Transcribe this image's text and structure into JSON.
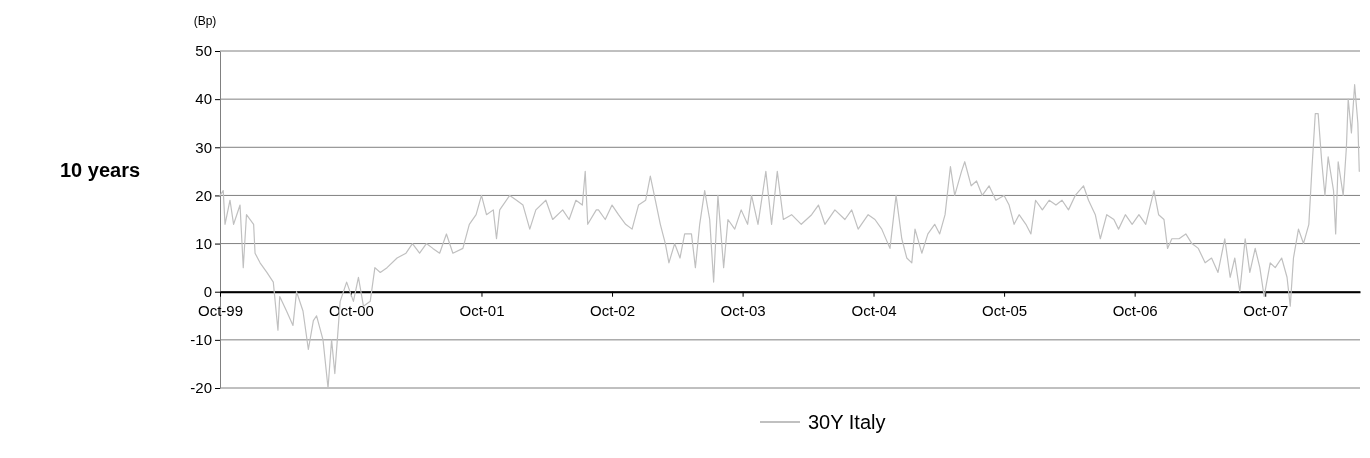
{
  "chart_data": {
    "type": "line",
    "title": "10 years",
    "ylabel": "(Bp)",
    "xlim": [
      "1999-10-01",
      "2008-06-22"
    ],
    "xticks": [
      {
        "value": "1999-10-01",
        "label": "Oct-99"
      },
      {
        "value": "2000-10-01",
        "label": "Oct-00"
      },
      {
        "value": "2001-10-01",
        "label": "Oct-01"
      },
      {
        "value": "2002-10-01",
        "label": "Oct-02"
      },
      {
        "value": "2003-10-01",
        "label": "Oct-03"
      },
      {
        "value": "2004-10-01",
        "label": "Oct-04"
      },
      {
        "value": "2005-10-01",
        "label": "Oct-05"
      },
      {
        "value": "2006-10-01",
        "label": "Oct-06"
      },
      {
        "value": "2007-10-01",
        "label": "Oct-07"
      }
    ],
    "ylim": [
      -20,
      50
    ],
    "yticks": [
      -20,
      -10,
      0,
      10,
      20,
      30,
      40,
      50
    ],
    "grid": "y",
    "legend": "bottom",
    "line_style": "solid",
    "marker": "none",
    "x": [
      "1999-10-01",
      "1999-10-10",
      "1999-10-15",
      "1999-10-29",
      "1999-11-08",
      "1999-11-26",
      "1999-12-05",
      "1999-12-14",
      "2000-01-03",
      "2000-01-07",
      "2000-01-21",
      "2000-02-09",
      "2000-02-27",
      "2000-03-11",
      "2000-03-16",
      "2000-04-04",
      "2000-04-22",
      "2000-05-02",
      "2000-05-20",
      "2000-06-04",
      "2000-06-18",
      "2000-06-27",
      "2000-07-15",
      "2000-07-29",
      "2000-08-08",
      "2000-08-17",
      "2000-09-01",
      "2000-09-19",
      "2000-10-08",
      "2000-10-22",
      "2000-11-05",
      "2000-11-24",
      "2000-12-07",
      "2000-12-22",
      "2001-01-10",
      "2001-02-07",
      "2001-03-04",
      "2001-03-22",
      "2001-04-11",
      "2001-04-30",
      "2001-05-18",
      "2001-06-06",
      "2001-06-25",
      "2001-07-13",
      "2001-08-10",
      "2001-08-28",
      "2001-09-16",
      "2001-10-01",
      "2001-10-15",
      "2001-11-03",
      "2001-11-12",
      "2001-11-21",
      "2001-12-19",
      "2002-01-07",
      "2002-01-25",
      "2002-02-13",
      "2002-03-02",
      "2002-03-30",
      "2002-04-18",
      "2002-05-16",
      "2002-06-03",
      "2002-06-22",
      "2002-07-10",
      "2002-07-18",
      "2002-07-25",
      "2002-08-18",
      "2002-08-24",
      "2002-09-12",
      "2002-10-01",
      "2002-10-19",
      "2002-11-08",
      "2002-11-26",
      "2002-12-14",
      "2003-01-03",
      "2003-01-16",
      "2003-01-30",
      "2003-02-13",
      "2003-02-27",
      "2003-03-09",
      "2003-03-25",
      "2003-04-09",
      "2003-04-22",
      "2003-05-11",
      "2003-05-22",
      "2003-06-03",
      "2003-06-17",
      "2003-07-01",
      "2003-07-12",
      "2003-07-24",
      "2003-08-09",
      "2003-08-21",
      "2003-09-09",
      "2003-09-27",
      "2003-10-15",
      "2003-10-26",
      "2003-11-13",
      "2003-12-05",
      "2003-12-21",
      "2004-01-06",
      "2004-01-23",
      "2004-02-15",
      "2004-03-13",
      "2004-04-11",
      "2004-04-30",
      "2004-05-18",
      "2004-06-15",
      "2004-07-13",
      "2004-08-01",
      "2004-08-19",
      "2004-09-16",
      "2004-10-05",
      "2004-10-24",
      "2004-11-16",
      "2004-12-03",
      "2004-12-19",
      "2005-01-02",
      "2005-01-16",
      "2005-01-25",
      "2005-02-13",
      "2005-03-02",
      "2005-03-21",
      "2005-04-04",
      "2005-04-19",
      "2005-05-04",
      "2005-05-16",
      "2005-06-04",
      "2005-06-13",
      "2005-07-01",
      "2005-07-16",
      "2005-08-01",
      "2005-08-20",
      "2005-09-08",
      "2005-10-01",
      "2005-10-15",
      "2005-10-29",
      "2005-11-12",
      "2005-12-01",
      "2005-12-15",
      "2005-12-28",
      "2006-01-16",
      "2006-02-04",
      "2006-02-23",
      "2006-03-12",
      "2006-03-30",
      "2006-04-18",
      "2006-05-11",
      "2006-05-25",
      "2006-06-13",
      "2006-06-27",
      "2006-07-15",
      "2006-08-04",
      "2006-08-17",
      "2006-09-05",
      "2006-09-24",
      "2006-10-13",
      "2006-11-01",
      "2006-11-24",
      "2006-12-07",
      "2006-12-22",
      "2007-01-01",
      "2007-01-13",
      "2007-02-02",
      "2007-02-21",
      "2007-03-10",
      "2007-03-28",
      "2007-04-16",
      "2007-05-04",
      "2007-05-22",
      "2007-06-10",
      "2007-06-25",
      "2007-07-08",
      "2007-07-22",
      "2007-08-06",
      "2007-08-19",
      "2007-09-03",
      "2007-09-16",
      "2007-09-28",
      "2007-10-15",
      "2007-10-29",
      "2007-11-16",
      "2007-12-01",
      "2007-12-10",
      "2007-12-19",
      "2008-01-02",
      "2008-01-16",
      "2008-01-31",
      "2008-02-09",
      "2008-02-18",
      "2008-02-26",
      "2008-03-07",
      "2008-03-16",
      "2008-03-25",
      "2008-04-09",
      "2008-04-15",
      "2008-04-22",
      "2008-05-06",
      "2008-05-15",
      "2008-05-20",
      "2008-05-29",
      "2008-06-07",
      "2008-06-16",
      "2008-06-20"
    ],
    "series": [
      {
        "name": "30Y Italy",
        "color": "#c0c0c0",
        "values": [
          20,
          21,
          14,
          19,
          14,
          18,
          5,
          16,
          14,
          8,
          6,
          4,
          2,
          -8,
          -1,
          -4,
          -7,
          0,
          -4,
          -12,
          -6,
          -5,
          -10,
          -20,
          -10,
          -17,
          -2,
          2,
          -2,
          3,
          -3,
          -2,
          5,
          4,
          5,
          7,
          8,
          10,
          8,
          10,
          9,
          8,
          12,
          8,
          9,
          14,
          16,
          20,
          16,
          17,
          11,
          17,
          20,
          19,
          18,
          13,
          17,
          19,
          15,
          17,
          15,
          19,
          18,
          25,
          14,
          17,
          17,
          15,
          18,
          16,
          14,
          13,
          18,
          19,
          24,
          19,
          14,
          10,
          6,
          10,
          7,
          12,
          12,
          5,
          14,
          21,
          15,
          2,
          20,
          5,
          15,
          13,
          17,
          14,
          20,
          14,
          25,
          14,
          25,
          15,
          16,
          14,
          16,
          18,
          14,
          17,
          15,
          17,
          13,
          16,
          15,
          13,
          9,
          20,
          11,
          7,
          6,
          13,
          8,
          12,
          14,
          12,
          16,
          26,
          20,
          25,
          27,
          22,
          23,
          20,
          22,
          19,
          20,
          18,
          14,
          16,
          14,
          12,
          19,
          17,
          19,
          18,
          19,
          17,
          20,
          22,
          19,
          16,
          11,
          16,
          15,
          13,
          16,
          14,
          16,
          14,
          21,
          16,
          15,
          9,
          11,
          11,
          12,
          10,
          9,
          6,
          7,
          4,
          11,
          3,
          7,
          0,
          11,
          4,
          9,
          5,
          -1,
          6,
          5,
          7,
          3,
          -3,
          7,
          13,
          10,
          14,
          26,
          37,
          37,
          27,
          20,
          28,
          21,
          12,
          27,
          20,
          30,
          40,
          33,
          43,
          35,
          25
        ]
      }
    ]
  }
}
